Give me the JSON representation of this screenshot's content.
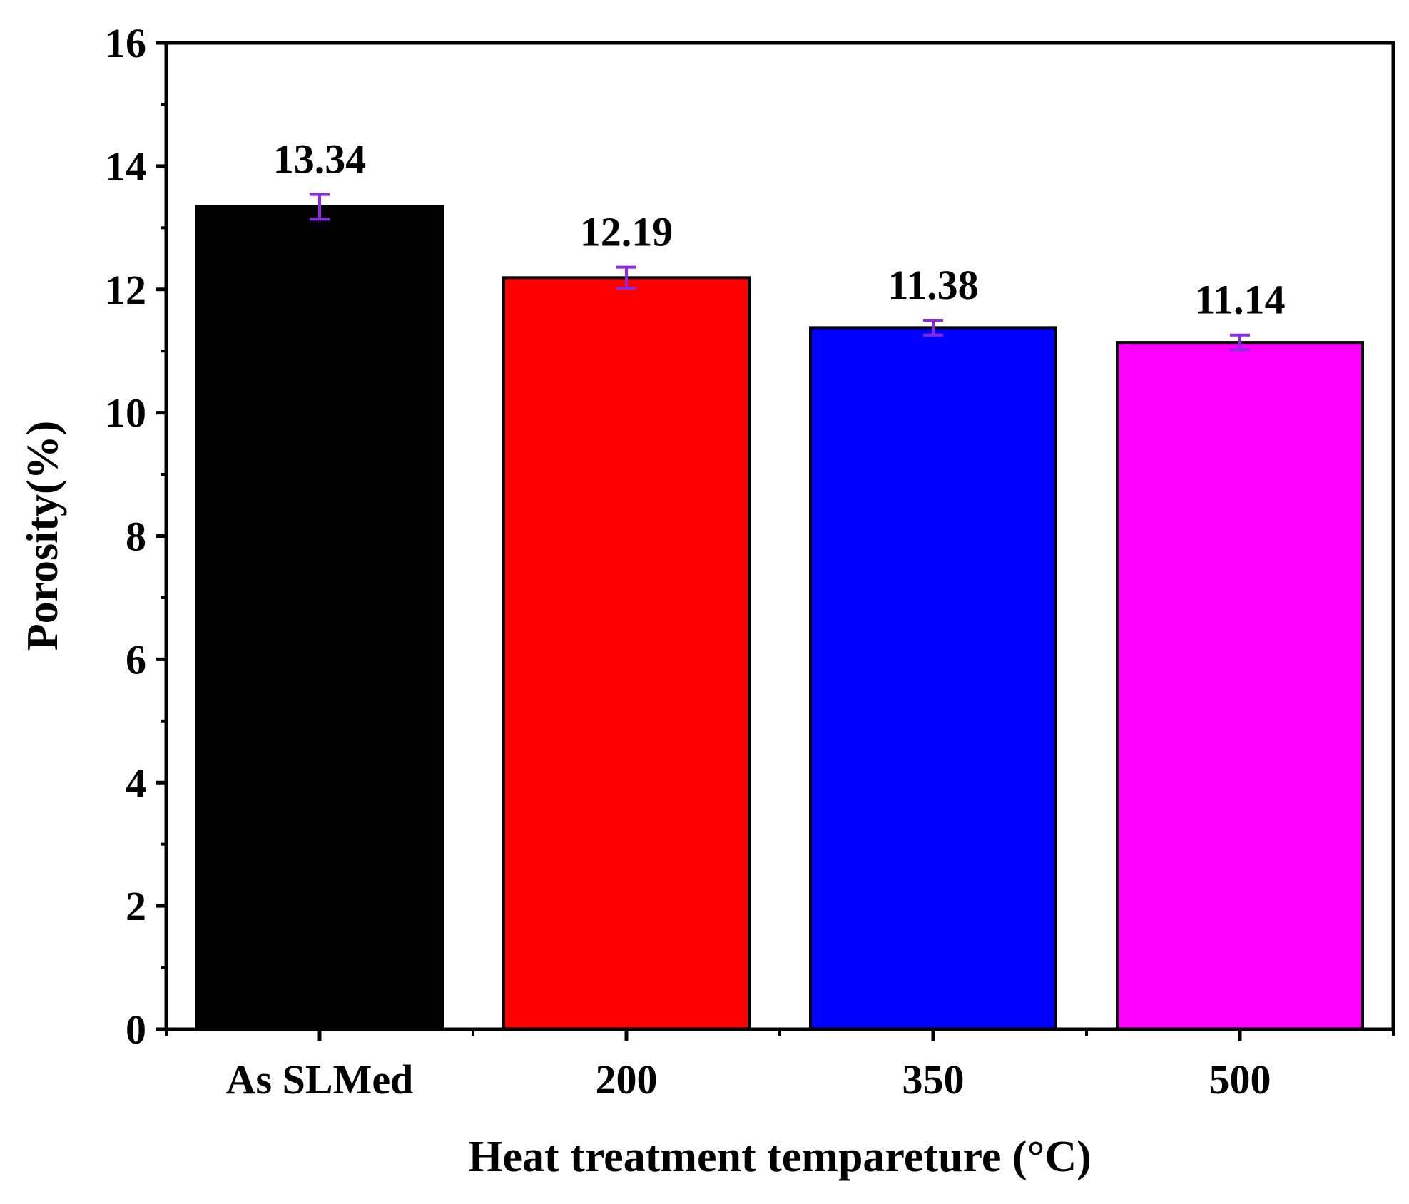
{
  "chart_data": {
    "type": "bar",
    "categories": [
      "As SLMed",
      "200",
      "350",
      "500"
    ],
    "values": [
      13.34,
      12.19,
      11.38,
      11.14
    ],
    "errors": [
      0.2,
      0.17,
      0.12,
      0.12
    ],
    "value_labels": [
      "13.34",
      "12.19",
      "11.38",
      "11.14"
    ],
    "bar_colors": [
      "#000000",
      "#ff0000",
      "#0000ff",
      "#ff00ff"
    ],
    "error_bar_color": "#8a2be2",
    "xlabel": "Heat treatment tempareture (°C)",
    "ylabel": "Porosity(%)",
    "ylim": [
      0,
      16
    ],
    "yticks": [
      0,
      2,
      4,
      6,
      8,
      10,
      12,
      14,
      16
    ],
    "ytick_labels": [
      "0",
      "2",
      "4",
      "6",
      "8",
      "10",
      "12",
      "14",
      "16"
    ],
    "grid": false,
    "legend": "none"
  }
}
